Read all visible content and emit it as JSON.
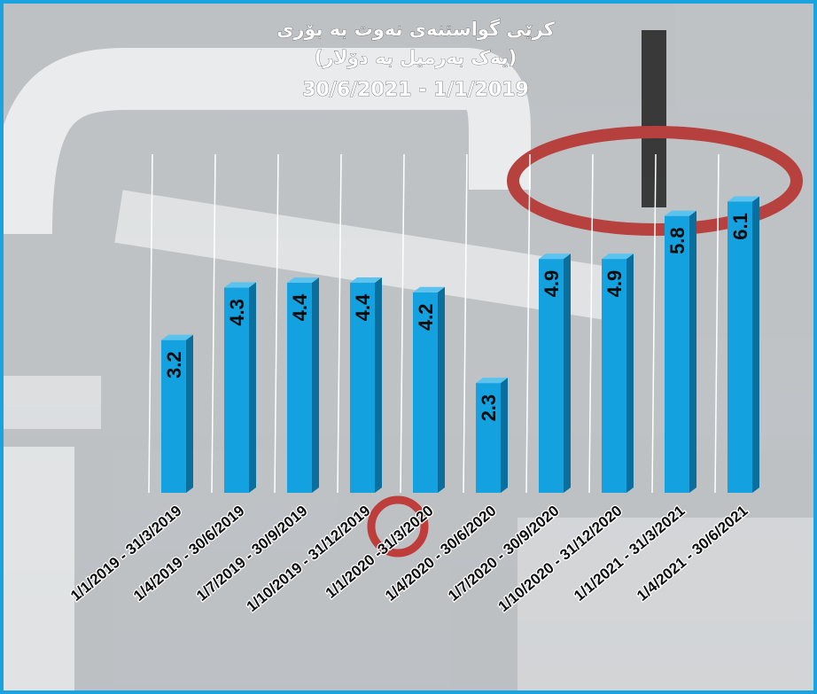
{
  "chart_data": {
    "type": "bar",
    "title": "کرێی گواستنەی نەوت بە بۆری",
    "subtitle": "(یەک بەرمیل بە دۆلار)",
    "period": "30/6/2021 - 1/1/2019",
    "categories": [
      "1/1/2019 - 31/3/2019",
      "1/4/2019 - 30/6/2019",
      "1/7/2019 - 30/9/2019",
      "1/10/2019 - 31/12/2019",
      "1/1/2020 -31/3/2020",
      "1/4/2020 - 30/6/2020",
      "1/7/2020 - 30/9/2020",
      "1/10/2020 - 31/12/2020",
      "1/1/2021 - 31/3/2021",
      "1/4/2021 - 30/6/2021"
    ],
    "values": [
      3.2,
      4.3,
      4.4,
      4.4,
      4.2,
      2.3,
      4.9,
      4.9,
      5.8,
      6.1
    ],
    "value_labels": [
      "3.2",
      "4.3",
      "4.4",
      "4.4",
      "4.2",
      "2.3",
      "4.9",
      "4.9",
      "5.8",
      "6.1"
    ],
    "ylim": [
      0,
      7
    ],
    "grid": true,
    "legend": "none",
    "colors": {
      "bar": "#13a2df",
      "bar_side": "#0a6f9c",
      "bar_top": "#5cc3ee",
      "border": "#1aa3de",
      "title": "#ffffff",
      "label": "#0b0b0b"
    }
  }
}
